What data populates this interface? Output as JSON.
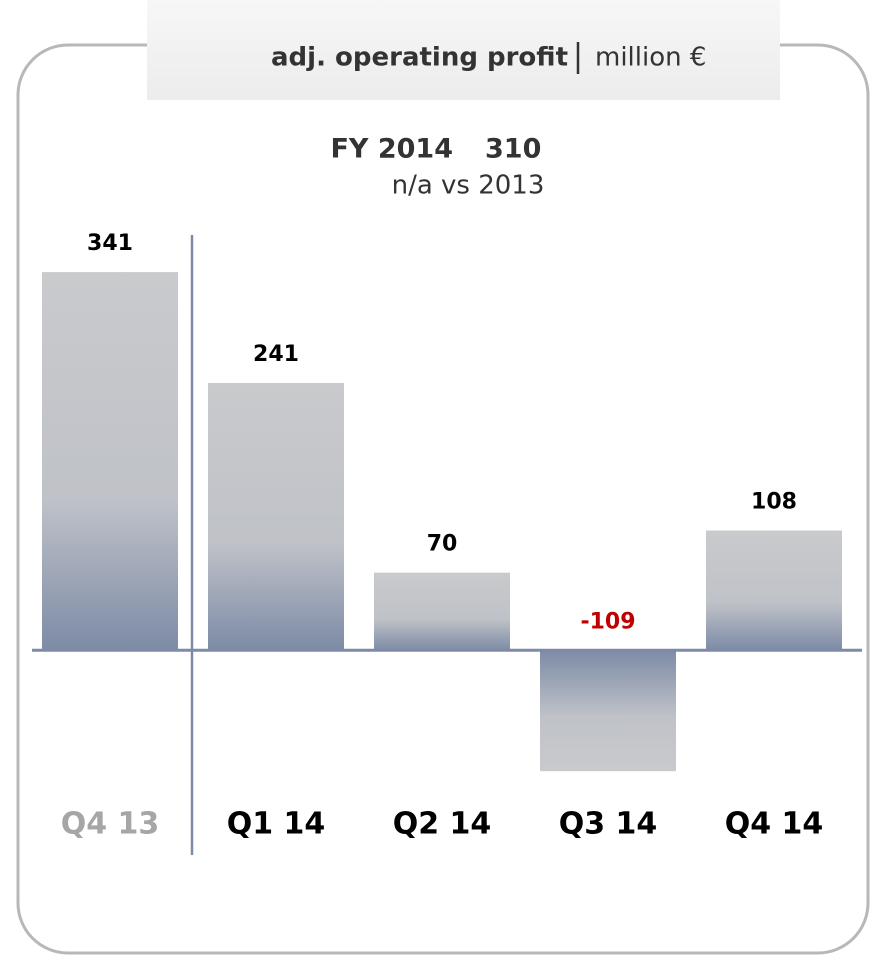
{
  "chart_data": {
    "type": "bar",
    "title": "adj. operating profit",
    "unit": "million €",
    "summary_label": "FY 2014",
    "summary_value": 310,
    "comparison": "n/a vs 2013",
    "categories": [
      "Q4 13",
      "Q1 14",
      "Q2 14",
      "Q3 14",
      "Q4 14"
    ],
    "values": [
      341,
      241,
      70,
      -109,
      108
    ],
    "category_label_colors": [
      "#a6a6a6",
      "#000000",
      "#000000",
      "#000000",
      "#000000"
    ],
    "value_label_color": "#000000",
    "negative_label_color": "#c00000",
    "bar_colors": [
      "#c9cacc",
      "#7d8ba6"
    ],
    "ylim": [
      -135,
      406
    ]
  }
}
